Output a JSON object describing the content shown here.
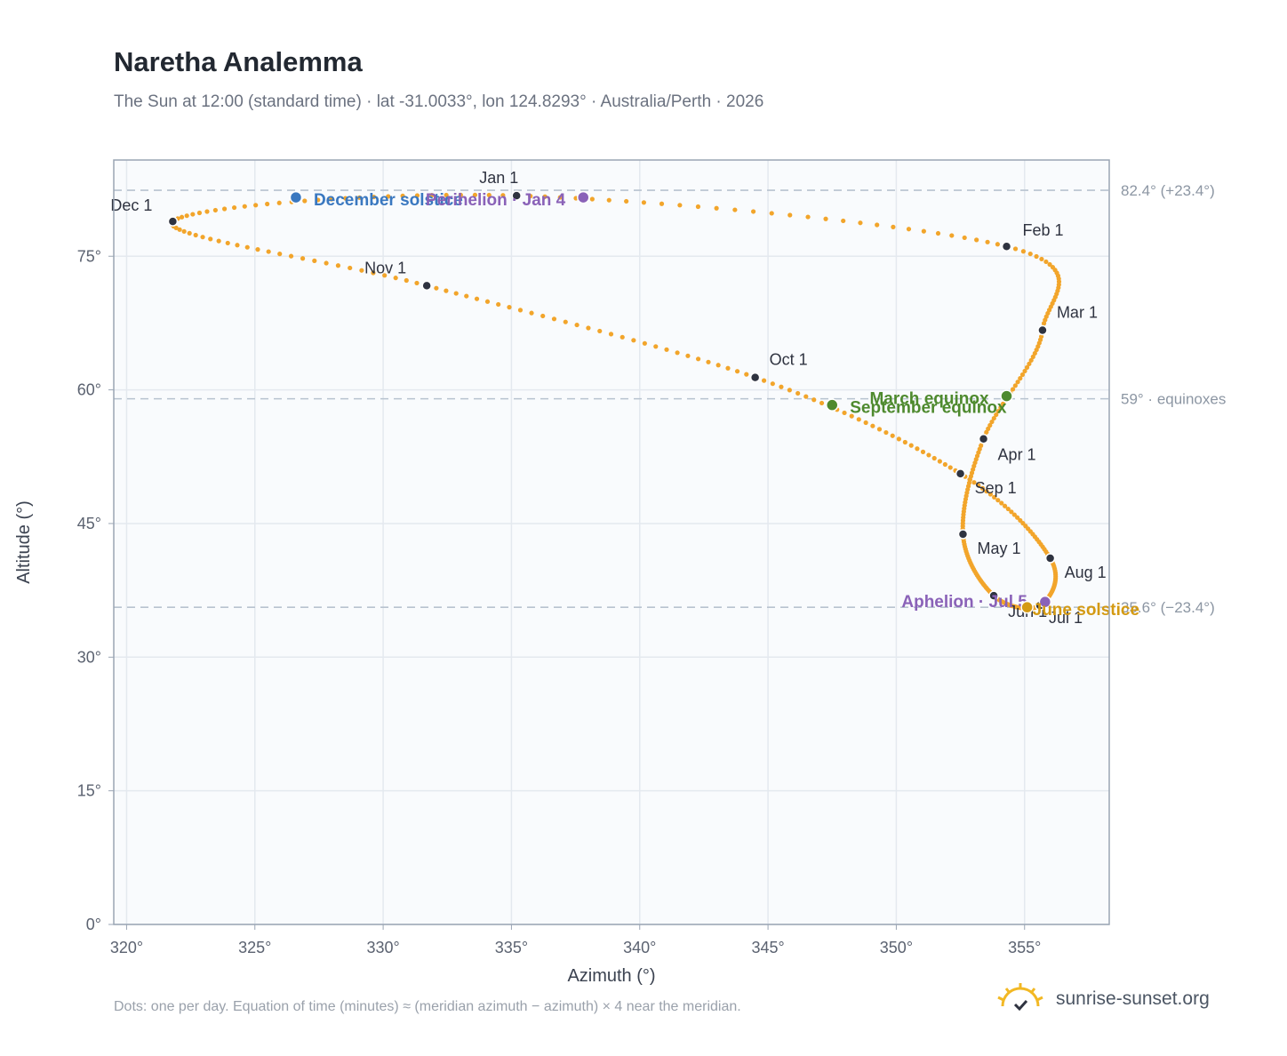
{
  "title": "Naretha Analemma",
  "subtitle": "The Sun at 12:00 (standard time) · lat -31.0033°, lon 124.8293° · Australia/Perth · 2026",
  "footnote": "Dots: one per day. Equation of time (minutes) ≈ (meridian azimuth − azimuth) × 4 near the meridian.",
  "brand": "sunrise-sunset.org",
  "chart_data": {
    "type": "scatter",
    "xlabel": "Azimuth (°)",
    "ylabel": "Altitude (°)",
    "xlim": [
      319.5,
      358.3
    ],
    "ylim": [
      0,
      85.8
    ],
    "xticks": [
      320,
      325,
      330,
      335,
      340,
      345,
      350,
      355
    ],
    "yticks": [
      0,
      15,
      30,
      45,
      60,
      75
    ],
    "grid": true,
    "colors": {
      "dots": "#f2a52b",
      "month_markers": "#2f3340",
      "equinox": "#4e8a2e",
      "december_solstice": "#3a78c0",
      "june_solstice": "#d49a13",
      "apsis": "#8a62b8",
      "reference_lines": "#b8c3cf"
    },
    "reference_lines": [
      {
        "y": 82.4,
        "label": "82.4° (+23.4°)"
      },
      {
        "y": 59,
        "label": "59° · equinoxes"
      },
      {
        "y": 35.6,
        "label": "35.6° (−23.4°)"
      }
    ],
    "month_markers": [
      {
        "label": "Jan 1",
        "x": 335.2,
        "y": 81.8
      },
      {
        "label": "Feb 1",
        "x": 354.3,
        "y": 76.1
      },
      {
        "label": "Mar 1",
        "x": 355.7,
        "y": 66.7
      },
      {
        "label": "Apr 1",
        "x": 353.4,
        "y": 54.5
      },
      {
        "label": "May 1",
        "x": 352.6,
        "y": 43.8
      },
      {
        "label": "Jun 1",
        "x": 353.8,
        "y": 36.9
      },
      {
        "label": "Jul 1",
        "x": 355.6,
        "y": 35.8
      },
      {
        "label": "Aug 1",
        "x": 356.0,
        "y": 41.1
      },
      {
        "label": "Sep 1",
        "x": 352.5,
        "y": 50.6
      },
      {
        "label": "Oct 1",
        "x": 344.5,
        "y": 61.4
      },
      {
        "label": "Nov 1",
        "x": 331.7,
        "y": 71.7
      },
      {
        "label": "Dec 1",
        "x": 321.8,
        "y": 78.9
      }
    ],
    "events": [
      {
        "label": "December solstice",
        "x": 326.6,
        "y": 81.6,
        "kind": "december_solstice"
      },
      {
        "label": "Perihelion · Jan 4",
        "x": 337.8,
        "y": 81.6,
        "kind": "apsis"
      },
      {
        "label": "March equinox",
        "x": 354.3,
        "y": 59.3,
        "kind": "equinox"
      },
      {
        "label": "September equinox",
        "x": 347.5,
        "y": 58.3,
        "kind": "equinox"
      },
      {
        "label": "Aphelion · Jul 5",
        "x": 355.8,
        "y": 36.2,
        "kind": "apsis"
      },
      {
        "label": "June solstice",
        "x": 355.1,
        "y": 35.6,
        "kind": "june_solstice"
      }
    ]
  }
}
